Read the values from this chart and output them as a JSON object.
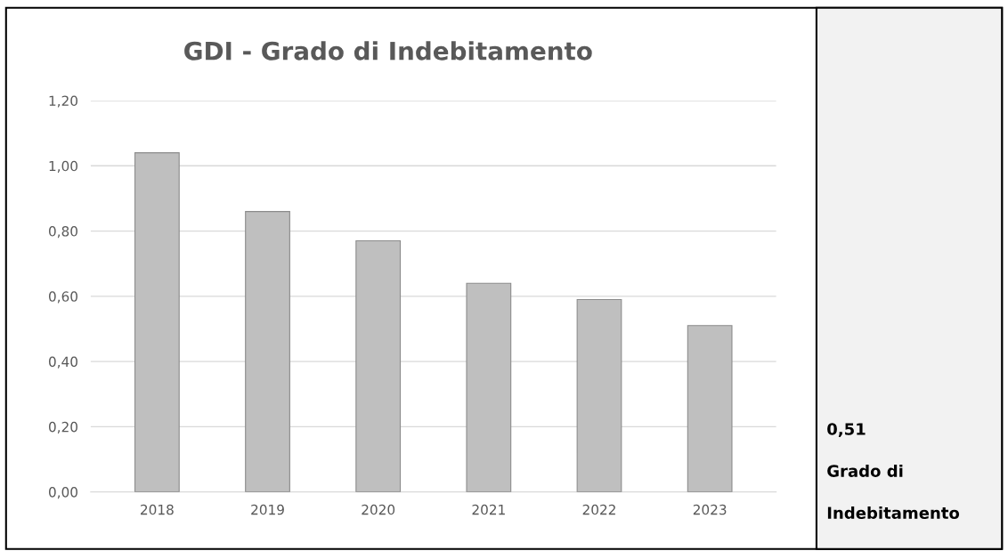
{
  "chart_data": {
    "type": "bar",
    "title": "GDI - Grado di Indebitamento",
    "categories": [
      "2018",
      "2019",
      "2020",
      "2021",
      "2022",
      "2023"
    ],
    "values": [
      1.04,
      0.86,
      0.77,
      0.64,
      0.59,
      0.51
    ],
    "color": "#bfbfbf",
    "ylim": [
      0,
      1.2
    ],
    "yticks": [
      {
        "value": 0,
        "label": "0,00"
      },
      {
        "value": 0.2,
        "label": "0,20"
      },
      {
        "value": 0.4,
        "label": "0,40"
      },
      {
        "value": 0.6,
        "label": "0,60"
      },
      {
        "value": 0.8,
        "label": "0,80"
      },
      {
        "value": 1.0,
        "label": "1,00"
      },
      {
        "value": 1.2,
        "label": "1,20"
      }
    ],
    "grid": "y",
    "annotations": [
      "0,51",
      "Grado di",
      "Indebitamento"
    ]
  }
}
